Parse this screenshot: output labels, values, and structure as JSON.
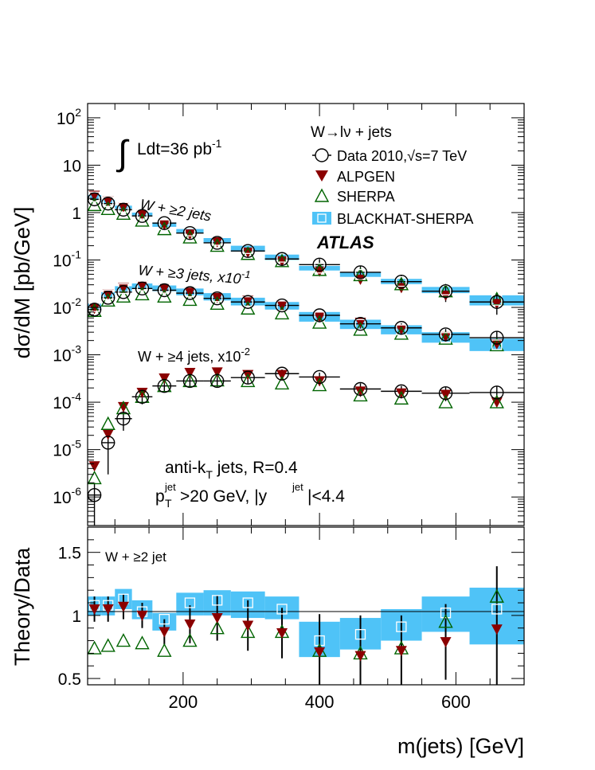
{
  "upper_panel": {
    "y_axis_label": "dσ/dM [pb/GeV]",
    "luminosity_text": "Ldt=36 pb",
    "luminosity_sup": "-1",
    "atlas_label": "ATLAS",
    "legend": {
      "title": "W→lν + jets",
      "entries": [
        {
          "label": "Data 2010,√s=7 TeV",
          "marker": "open-circle"
        },
        {
          "label": "ALPGEN",
          "marker": "filled-down-triangle"
        },
        {
          "label": "SHERPA",
          "marker": "open-up-triangle"
        },
        {
          "label": "BLACKHAT-SHERPA",
          "marker": "band-open-square"
        }
      ]
    },
    "series_labels": [
      {
        "text": "W + ≥2 jets",
        "sup": ""
      },
      {
        "text": "W + ≥3 jets, x10",
        "sup": "-1"
      },
      {
        "text": "W + ≥4 jets, x10",
        "sup": "-2"
      }
    ],
    "jet_info": {
      "line1_main": "anti-k",
      "line1_sub": "T",
      "line1_rest": " jets, R=0.4",
      "line2": [
        "p",
        "jet",
        "T",
        ">20 GeV, |y",
        "jet",
        "|<4.4"
      ]
    },
    "y_ticks": [
      {
        "base": "10",
        "exp": "-6"
      },
      {
        "base": "10",
        "exp": "-5"
      },
      {
        "base": "10",
        "exp": "-4"
      },
      {
        "base": "10",
        "exp": "-3"
      },
      {
        "base": "10",
        "exp": "-2"
      },
      {
        "base": "10",
        "exp": "-1"
      },
      {
        "base": "1",
        "exp": ""
      },
      {
        "base": "10",
        "exp": ""
      },
      {
        "base": "10",
        "exp": "2"
      }
    ]
  },
  "lower_panel": {
    "y_axis_label": "Theory/Data",
    "label": "W + ≥2 jet",
    "y_ticks": [
      "0.5",
      "1",
      "1.5"
    ]
  },
  "x_axis_label": "m(jets) [GeV]",
  "x_ticks": [
    "200",
    "400",
    "600"
  ],
  "colors": {
    "data": "#000000",
    "alpgen": "#8b0000",
    "sherpa": "#006400",
    "blackhat": "#4fc3f7"
  },
  "chart_data": [
    {
      "type": "scatter",
      "y_scale": "log",
      "xlim": [
        60,
        700
      ],
      "ylim": [
        2.5e-07,
        200
      ],
      "x_bins": [
        [
          60,
          80
        ],
        [
          80,
          100
        ],
        [
          100,
          125
        ],
        [
          125,
          155
        ],
        [
          155,
          190
        ],
        [
          190,
          230
        ],
        [
          230,
          270
        ],
        [
          270,
          320
        ],
        [
          320,
          370
        ],
        [
          370,
          430
        ],
        [
          430,
          490
        ],
        [
          490,
          550
        ],
        [
          550,
          620
        ],
        [
          620,
          700
        ]
      ],
      "series": [
        {
          "name": "W + ≥2 jets",
          "data": [
            1.9,
            1.55,
            1.15,
            0.85,
            0.6,
            0.37,
            0.23,
            0.155,
            0.105,
            0.08,
            0.055,
            0.035,
            0.022,
            0.013
          ],
          "data_err": [
            0.18,
            0.14,
            0.1,
            0.08,
            0.06,
            0.04,
            0.03,
            0.025,
            0.02,
            0.025,
            0.02,
            0.014,
            0.009,
            0.006
          ],
          "alpgen": [
            2.3,
            1.75,
            1.3,
            0.9,
            0.55,
            0.35,
            0.24,
            0.145,
            0.095,
            0.058,
            0.039,
            0.026,
            0.018,
            0.012
          ],
          "sherpa": [
            1.45,
            1.2,
            0.95,
            0.68,
            0.45,
            0.3,
            0.2,
            0.135,
            0.095,
            0.062,
            0.048,
            0.031,
            0.022,
            0.015
          ],
          "blackhat": [
            [
              1.95,
              2.35
            ],
            [
              1.55,
              1.85
            ],
            [
              1.2,
              1.4
            ],
            [
              0.85,
              1.0
            ],
            [
              0.5,
              0.62
            ],
            [
              0.37,
              0.45
            ],
            [
              0.23,
              0.29
            ],
            [
              0.15,
              0.2
            ],
            [
              0.1,
              0.13
            ],
            [
              0.06,
              0.075
            ],
            [
              0.044,
              0.056
            ],
            [
              0.031,
              0.04
            ],
            [
              0.02,
              0.027
            ],
            [
              0.011,
              0.018
            ]
          ]
        },
        {
          "name": "W + ≥3 jets, x10^-1",
          "data": [
            0.009,
            0.016,
            0.021,
            0.025,
            0.023,
            0.02,
            0.0155,
            0.013,
            0.011,
            0.0068,
            0.0045,
            0.0037,
            0.0027,
            0.0023
          ],
          "data_err": [
            0.0012,
            0.0015,
            0.0018,
            0.002,
            0.002,
            0.0018,
            0.0016,
            0.0014,
            0.0013,
            0.0012,
            0.001,
            0.0009,
            0.0008,
            0.0008
          ],
          "alpgen": [
            0.0095,
            0.019,
            0.026,
            0.029,
            0.025,
            0.021,
            0.016,
            0.014,
            0.011,
            0.0062,
            0.0048,
            0.0034,
            0.0024,
            0.0017
          ],
          "sherpa": [
            0.0085,
            0.014,
            0.017,
            0.019,
            0.017,
            0.0145,
            0.012,
            0.0095,
            0.0075,
            0.0048,
            0.0034,
            0.0028,
            0.0022,
            0.0016
          ],
          "blackhat": [
            [
              0.009,
              0.012
            ],
            [
              0.016,
              0.021
            ],
            [
              0.022,
              0.028
            ],
            [
              0.025,
              0.032
            ],
            [
              0.022,
              0.029
            ],
            [
              0.018,
              0.025
            ],
            [
              0.014,
              0.02
            ],
            [
              0.011,
              0.016
            ],
            [
              0.009,
              0.013
            ],
            [
              0.005,
              0.008
            ],
            [
              0.0035,
              0.0055
            ],
            [
              0.0027,
              0.0042
            ],
            [
              0.0018,
              0.003
            ],
            [
              0.0012,
              0.0022
            ]
          ]
        },
        {
          "name": "W + ≥4 jets, x10^-2",
          "data": [
            1.1e-06,
            1.4e-05,
            4.5e-05,
            0.00013,
            0.00022,
            0.00028,
            0.00028,
            0.00033,
            0.0004,
            0.00034,
            0.00019,
            0.00017,
            0.000155,
            0.00016
          ],
          "data_err": [
            9e-07,
            1.1e-05,
            2e-05,
            4e-05,
            6e-05,
            7e-05,
            7e-05,
            8e-05,
            9e-05,
            8e-05,
            6e-05,
            5e-05,
            5e-05,
            6e-05
          ],
          "alpgen": [
            4.5e-06,
            2.1e-05,
            8e-05,
            0.00016,
            0.00032,
            0.00042,
            0.00043,
            0.00038,
            0.00038,
            0.00028,
            0.00017,
            0.000155,
            0.000145,
            0.0001
          ],
          "sherpa": [
            2.5e-06,
            3.5e-05,
            7.5e-05,
            0.00013,
            0.00022,
            0.00028,
            0.00029,
            0.00028,
            0.00025,
            0.00023,
            0.00014,
            0.00012,
            0.0001,
            0.0001
          ]
        }
      ]
    },
    {
      "type": "scatter",
      "xlim": [
        60,
        700
      ],
      "ylim": [
        0.45,
        1.7
      ],
      "x_bins": [
        [
          60,
          80
        ],
        [
          80,
          100
        ],
        [
          100,
          125
        ],
        [
          125,
          155
        ],
        [
          155,
          190
        ],
        [
          190,
          230
        ],
        [
          230,
          270
        ],
        [
          270,
          320
        ],
        [
          320,
          370
        ],
        [
          370,
          430
        ],
        [
          430,
          490
        ],
        [
          490,
          550
        ],
        [
          550,
          620
        ],
        [
          620,
          700
        ]
      ],
      "series": [
        {
          "name": "ALPGEN",
          "values": [
            1.05,
            1.05,
            1.07,
            1.0,
            0.87,
            0.93,
            0.98,
            0.92,
            0.86,
            0.71,
            0.68,
            0.72,
            0.79,
            0.89
          ],
          "errors": [
            0.1,
            0.1,
            0.1,
            0.1,
            0.1,
            0.15,
            0.18,
            0.2,
            0.2,
            0.3,
            0.32,
            0.28,
            0.3,
            0.5
          ]
        },
        {
          "name": "SHERPA",
          "values": [
            0.74,
            0.76,
            0.8,
            0.78,
            0.72,
            0.8,
            0.9,
            0.87,
            0.87,
            0.72,
            0.7,
            0.74,
            0.95,
            1.15
          ]
        },
        {
          "name": "BLACKHAT-SHERPA",
          "values": [
            1.08,
            1.08,
            1.13,
            1.03,
            0.97,
            1.1,
            1.12,
            1.1,
            1.05,
            0.8,
            0.85,
            0.91,
            1.02,
            1.05
          ],
          "band": [
            [
              1.0,
              1.15
            ],
            [
              1.0,
              1.15
            ],
            [
              1.05,
              1.21
            ],
            [
              0.97,
              1.12
            ],
            [
              0.88,
              1.02
            ],
            [
              1.0,
              1.18
            ],
            [
              1.0,
              1.2
            ],
            [
              0.98,
              1.19
            ],
            [
              0.97,
              1.15
            ],
            [
              0.67,
              0.95
            ],
            [
              0.73,
              0.98
            ],
            [
              0.8,
              1.05
            ],
            [
              0.87,
              1.15
            ],
            [
              0.77,
              1.22
            ]
          ]
        }
      ]
    }
  ]
}
